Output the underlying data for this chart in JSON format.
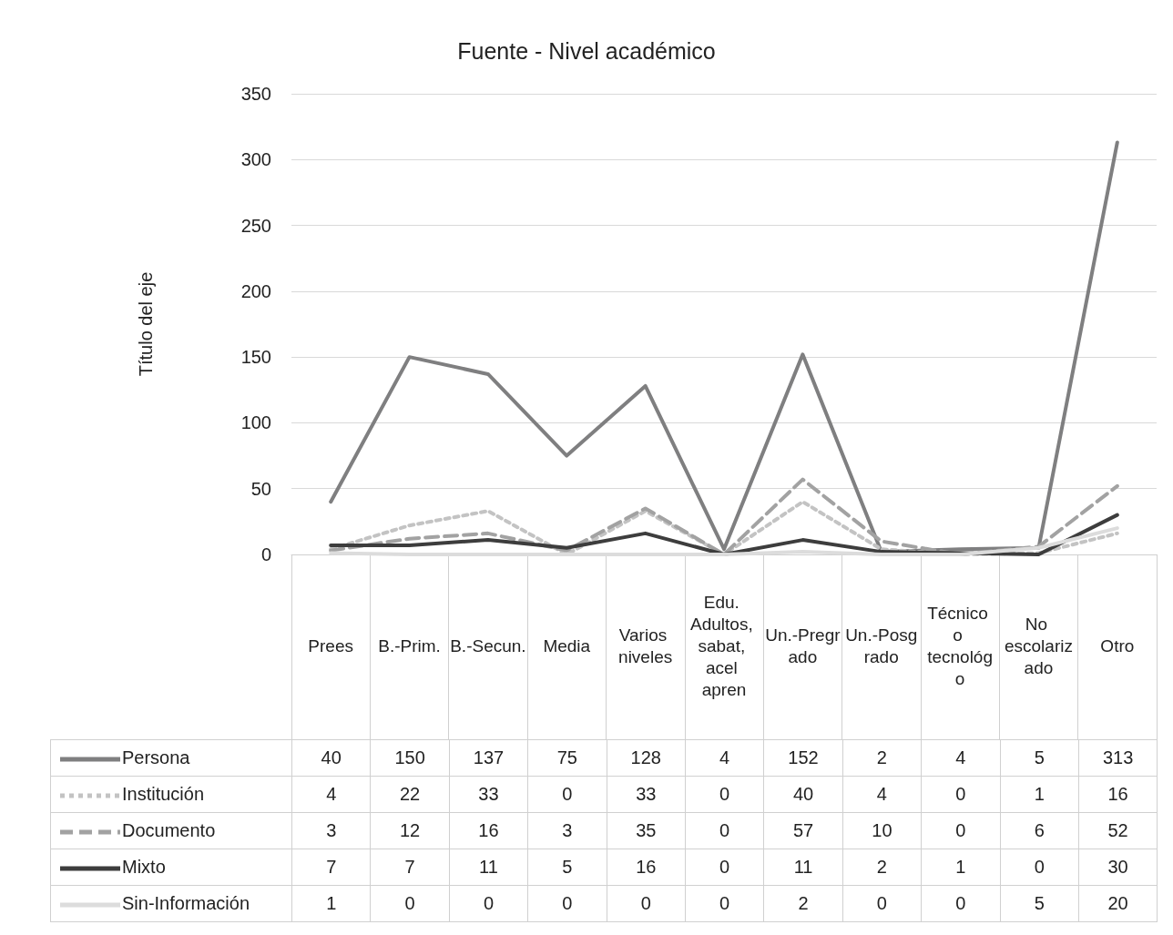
{
  "chart_data": {
    "type": "line",
    "title": "Fuente - Nivel académico",
    "ylabel": "Título del eje",
    "categories": [
      "Prees",
      "B.-Prim.",
      "B.-Secun.",
      "Media",
      "Varios niveles",
      "Edu. Adultos, sabat, acel apren",
      "Un.-Pregrado",
      "Un.-Posgrado",
      "Técnico o tecnológo",
      "No escolarizado",
      "Otro"
    ],
    "series": [
      {
        "name": "Persona",
        "color": "#7f7f80",
        "line_style": "solid",
        "values": [
          40,
          150,
          137,
          75,
          128,
          4,
          152,
          2,
          4,
          5,
          313
        ]
      },
      {
        "name": "Institución",
        "color": "#c3c3c3",
        "line_style": "dotted",
        "values": [
          4,
          22,
          33,
          0,
          33,
          0,
          40,
          4,
          0,
          1,
          16
        ]
      },
      {
        "name": "Documento",
        "color": "#a2a2a2",
        "line_style": "dashed",
        "values": [
          3,
          12,
          16,
          3,
          35,
          0,
          57,
          10,
          0,
          6,
          52
        ]
      },
      {
        "name": "Mixto",
        "color": "#3d3d3d",
        "line_style": "solid",
        "values": [
          7,
          7,
          11,
          5,
          16,
          0,
          11,
          2,
          1,
          0,
          30
        ]
      },
      {
        "name": "Sin-Información",
        "color": "#dcdcdc",
        "line_style": "solid",
        "values": [
          1,
          0,
          0,
          0,
          0,
          0,
          2,
          0,
          0,
          5,
          20
        ]
      }
    ],
    "ylim": [
      0,
      350
    ],
    "yticks": [
      0,
      50,
      100,
      150,
      200,
      250,
      300,
      350
    ],
    "grid": "y",
    "marker": "none",
    "legend": "bottom",
    "data_labels": true
  }
}
